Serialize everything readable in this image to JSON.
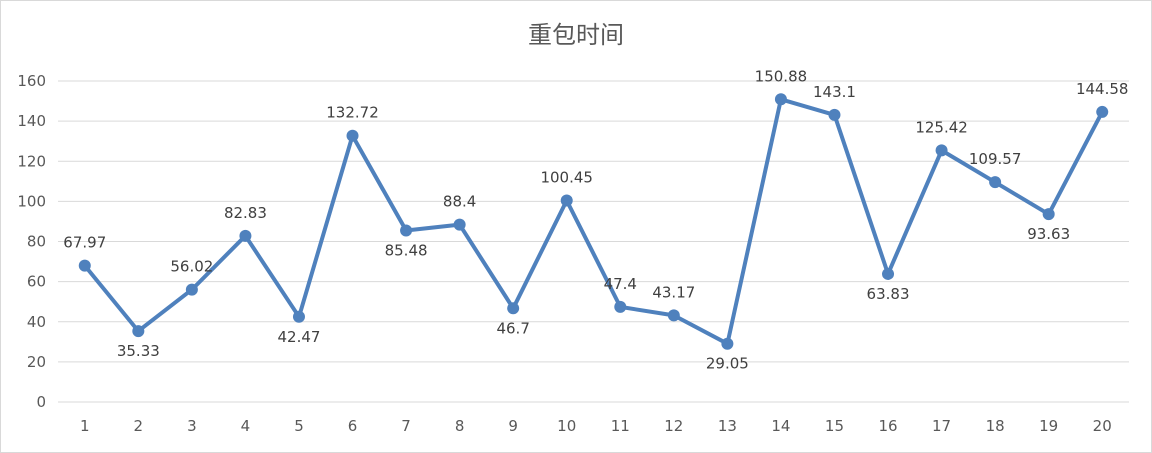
{
  "chart_data": {
    "type": "line",
    "title": "重包时间",
    "xlabel": "",
    "ylabel": "",
    "x": [
      1,
      2,
      3,
      4,
      5,
      6,
      7,
      8,
      9,
      10,
      11,
      12,
      13,
      14,
      15,
      16,
      17,
      18,
      19,
      20
    ],
    "x_tick_labels": [
      "1",
      "2",
      "3",
      "4",
      "5",
      "6",
      "7",
      "8",
      "9",
      "10",
      "11",
      "12",
      "13",
      "14",
      "15",
      "16",
      "17",
      "18",
      "19",
      "20"
    ],
    "series": [
      {
        "values": [
          67.97,
          35.33,
          56.02,
          82.83,
          42.47,
          132.72,
          85.48,
          88.4,
          46.7,
          100.45,
          47.4,
          43.17,
          29.05,
          150.88,
          143.1,
          63.83,
          125.42,
          109.57,
          93.63,
          144.58
        ],
        "data_labels": [
          "67.97",
          "35.33",
          "56.02",
          "82.83",
          "42.47",
          "132.72",
          "85.48",
          "88.4",
          "46.7",
          "100.45",
          "47.4",
          "43.17",
          "29.05",
          "150.88",
          "143.1",
          "63.83",
          "125.42",
          "109.57",
          "93.63",
          "144.58"
        ],
        "color": "#4f81bd"
      }
    ],
    "ylim": [
      0,
      160
    ],
    "y_ticks": [
      0,
      20,
      40,
      60,
      80,
      100,
      120,
      140,
      160
    ],
    "y_tick_labels": [
      "0",
      "20",
      "40",
      "60",
      "80",
      "100",
      "120",
      "140",
      "160"
    ],
    "grid": "horizontal",
    "legend": "none"
  },
  "colors": {
    "line": "#4f81bd",
    "grid": "#d9d9d9",
    "text": "#595959"
  }
}
